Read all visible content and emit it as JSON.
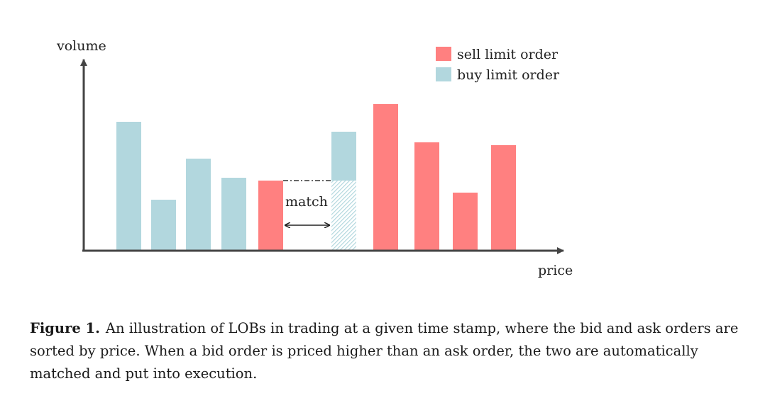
{
  "axes": {
    "y_label": "volume",
    "x_label": "price"
  },
  "legend": {
    "items": [
      {
        "label": "sell limit order",
        "color": "#ff8080"
      },
      {
        "label": "buy limit order",
        "color": "#b2d7de"
      }
    ]
  },
  "colors": {
    "sell": "#ff8080",
    "buy": "#b2d7de",
    "axis": "#444444"
  },
  "bars": [
    {
      "side": "buy",
      "volume": 181
    },
    {
      "side": "buy",
      "volume": 71
    },
    {
      "side": "buy",
      "volume": 129
    },
    {
      "side": "buy",
      "volume": 102
    },
    {
      "side": "sell",
      "volume": 98
    },
    {
      "side": "buy",
      "volume": 167,
      "matched_volume": 98
    },
    {
      "side": "sell",
      "volume": 206
    },
    {
      "side": "sell",
      "volume": 152
    },
    {
      "side": "sell",
      "volume": 81
    },
    {
      "side": "sell",
      "volume": 148
    }
  ],
  "annotation": {
    "match_label": "match"
  },
  "caption": {
    "label": "Figure 1.",
    "text": "An illustration of LOBs in trading at a given time stamp, where the bid and ask orders are sorted by price. When a bid order is priced higher than an ask order, the two are automatically matched and put into execution."
  }
}
